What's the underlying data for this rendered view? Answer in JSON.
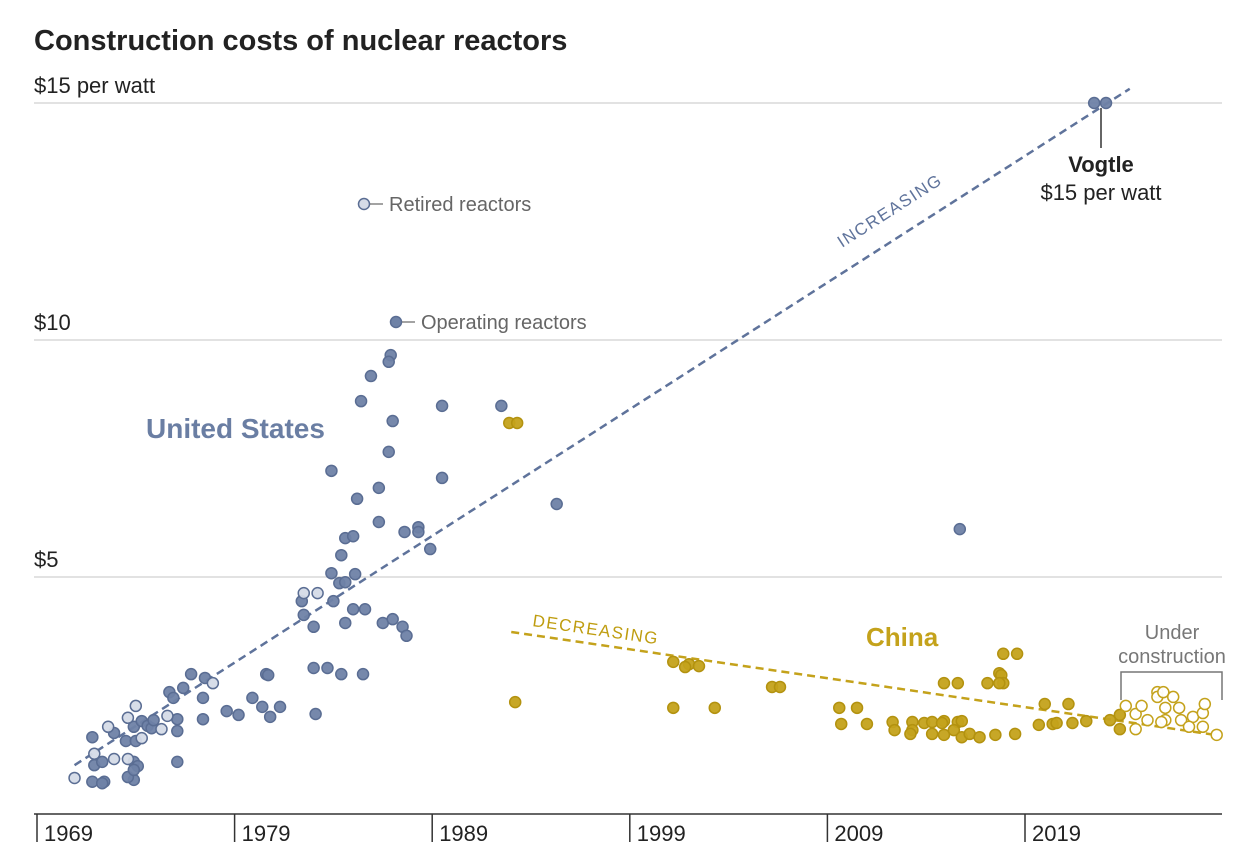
{
  "chart_data": {
    "type": "scatter",
    "title": "Construction costs of nuclear reactors",
    "xlabel": "",
    "ylabel": "",
    "xlim": [
      1969,
      2029
    ],
    "ylim": [
      0,
      15
    ],
    "grid": true,
    "y_ticks": [
      {
        "value": 15,
        "label": "$15 per watt"
      },
      {
        "value": 10,
        "label": "$10"
      },
      {
        "value": 5,
        "label": "$5"
      }
    ],
    "x_ticks": [
      {
        "value": 1969,
        "label": "1969"
      },
      {
        "value": 1979,
        "label": "1979"
      },
      {
        "value": 1989,
        "label": "1989"
      },
      {
        "value": 1999,
        "label": "1999"
      },
      {
        "value": 2009,
        "label": "2009"
      },
      {
        "value": 2019,
        "label": "2019"
      }
    ],
    "legend": {
      "retired": "Retired reactors",
      "operating": "Operating reactors"
    },
    "colors": {
      "us_fill": "#6f82a6",
      "us_stroke": "#5a6d93",
      "us_retired_fill": "#d5dbe7",
      "china": "#c4a21b",
      "china_stroke": "#b3920f",
      "grid": "#d8d8d8"
    },
    "series": [
      {
        "name": "United States",
        "status": "operating",
        "points": [
          [
            1971.8,
            0.68
          ],
          [
            1972.4,
            0.68
          ],
          [
            1972.3,
            0.65
          ],
          [
            1973.9,
            0.72
          ],
          [
            1973.6,
            0.78
          ],
          [
            1971.9,
            1.03
          ],
          [
            1972.3,
            1.1
          ],
          [
            1973.9,
            1.1
          ],
          [
            1974.1,
            1.01
          ],
          [
            1973.9,
            0.93
          ],
          [
            1971.8,
            1.62
          ],
          [
            1972.9,
            1.71
          ],
          [
            1973.5,
            1.54
          ],
          [
            1974.0,
            1.54
          ],
          [
            1973.9,
            1.84
          ],
          [
            1974.3,
            1.96
          ],
          [
            1974.6,
            1.86
          ],
          [
            1974.8,
            1.81
          ],
          [
            1974.9,
            1.98
          ],
          [
            1976.1,
            2.0
          ],
          [
            1976.1,
            1.75
          ],
          [
            1976.1,
            1.1
          ],
          [
            1975.7,
            2.57
          ],
          [
            1975.9,
            2.45
          ],
          [
            1976.4,
            2.66
          ],
          [
            1976.8,
            2.95
          ],
          [
            1977.5,
            2.87
          ],
          [
            1977.4,
            2.45
          ],
          [
            1977.4,
            2.0
          ],
          [
            1978.6,
            2.17
          ],
          [
            1979.2,
            2.09
          ],
          [
            1979.9,
            2.45
          ],
          [
            1980.4,
            2.26
          ],
          [
            1980.8,
            2.05
          ],
          [
            1981.3,
            2.26
          ],
          [
            1980.6,
            2.95
          ],
          [
            1980.7,
            2.93
          ],
          [
            1983.0,
            3.08
          ],
          [
            1983.7,
            3.08
          ],
          [
            1984.4,
            2.95
          ],
          [
            1985.5,
            2.95
          ],
          [
            1983.1,
            2.11
          ],
          [
            1982.4,
            4.49
          ],
          [
            1982.5,
            4.2
          ],
          [
            1983.0,
            3.95
          ],
          [
            1984.0,
            4.49
          ],
          [
            1984.3,
            4.87
          ],
          [
            1984.6,
            4.89
          ],
          [
            1985.0,
            4.32
          ],
          [
            1985.6,
            4.32
          ],
          [
            1984.6,
            4.03
          ],
          [
            1986.5,
            4.03
          ],
          [
            1987.0,
            4.11
          ],
          [
            1987.5,
            3.95
          ],
          [
            1987.7,
            3.76
          ],
          [
            1986.9,
            9.68
          ],
          [
            1986.8,
            9.54
          ],
          [
            1985.9,
            9.24
          ],
          [
            1985.4,
            8.71
          ],
          [
            1987.0,
            8.29
          ],
          [
            1986.8,
            7.64
          ],
          [
            1983.9,
            7.24
          ],
          [
            1989.5,
            8.61
          ],
          [
            1989.5,
            7.09
          ],
          [
            1986.3,
            6.88
          ],
          [
            1985.2,
            6.65
          ],
          [
            1986.3,
            6.16
          ],
          [
            1984.6,
            5.82
          ],
          [
            1985.0,
            5.86
          ],
          [
            1984.4,
            5.46
          ],
          [
            1987.6,
            5.95
          ],
          [
            1988.3,
            6.05
          ],
          [
            1988.3,
            5.95
          ],
          [
            1988.9,
            5.59
          ],
          [
            1985.1,
            5.06
          ],
          [
            1983.9,
            5.08
          ],
          [
            1992.5,
            8.61
          ],
          [
            1995.3,
            6.54
          ],
          [
            2015.7,
            6.01
          ],
          [
            2022.5,
            15.0
          ],
          [
            2023.1,
            15.0
          ]
        ]
      },
      {
        "name": "United States",
        "status": "retired",
        "points": [
          [
            1970.9,
            0.76
          ],
          [
            1972.9,
            1.16
          ],
          [
            1973.6,
            1.16
          ],
          [
            1971.9,
            1.27
          ],
          [
            1972.6,
            1.84
          ],
          [
            1974.3,
            1.6
          ],
          [
            1973.6,
            2.03
          ],
          [
            1974.0,
            2.28
          ],
          [
            1975.3,
            1.79
          ],
          [
            1975.6,
            2.07
          ],
          [
            1977.9,
            2.76
          ],
          [
            1982.5,
            4.66
          ],
          [
            1983.2,
            4.66
          ]
        ]
      },
      {
        "name": "China",
        "status": "operating",
        "points": [
          [
            1992.9,
            8.25
          ],
          [
            1993.3,
            8.25
          ],
          [
            1993.2,
            2.36
          ],
          [
            2001.2,
            3.21
          ],
          [
            2002.0,
            3.16
          ],
          [
            2001.8,
            3.1
          ],
          [
            2002.5,
            3.12
          ],
          [
            2001.2,
            2.24
          ],
          [
            2003.3,
            2.24
          ],
          [
            2006.2,
            2.68
          ],
          [
            2006.6,
            2.68
          ],
          [
            2009.6,
            2.24
          ],
          [
            2010.5,
            2.24
          ],
          [
            2009.7,
            1.9
          ],
          [
            2011.0,
            1.9
          ],
          [
            2012.3,
            1.94
          ],
          [
            2012.4,
            1.77
          ],
          [
            2013.3,
            1.94
          ],
          [
            2013.3,
            1.77
          ],
          [
            2013.2,
            1.69
          ],
          [
            2013.9,
            1.92
          ],
          [
            2014.3,
            1.94
          ],
          [
            2014.9,
            1.96
          ],
          [
            2014.8,
            1.92
          ],
          [
            2015.6,
            1.94
          ],
          [
            2015.8,
            1.96
          ],
          [
            2014.3,
            1.69
          ],
          [
            2014.9,
            1.67
          ],
          [
            2015.4,
            1.77
          ],
          [
            2015.8,
            1.62
          ],
          [
            2016.2,
            1.69
          ],
          [
            2016.7,
            1.62
          ],
          [
            2017.5,
            1.67
          ],
          [
            2018.5,
            1.69
          ],
          [
            2017.9,
            3.38
          ],
          [
            2018.6,
            3.38
          ],
          [
            2017.7,
            2.97
          ],
          [
            2017.8,
            2.93
          ],
          [
            2017.9,
            2.76
          ],
          [
            2017.7,
            2.76
          ],
          [
            2014.9,
            2.76
          ],
          [
            2015.6,
            2.76
          ],
          [
            2017.1,
            2.76
          ],
          [
            2020.0,
            2.32
          ],
          [
            2021.2,
            2.32
          ],
          [
            2019.7,
            1.88
          ],
          [
            2020.4,
            1.9
          ],
          [
            2020.6,
            1.92
          ],
          [
            2021.4,
            1.92
          ],
          [
            2022.1,
            1.96
          ],
          [
            2023.3,
            1.98
          ],
          [
            2023.8,
            2.09
          ],
          [
            2023.8,
            1.79
          ]
        ]
      },
      {
        "name": "China",
        "status": "under construction",
        "points": [
          [
            2024.1,
            2.28
          ],
          [
            2024.6,
            2.11
          ],
          [
            2024.9,
            2.28
          ],
          [
            2025.2,
            1.98
          ],
          [
            2025.7,
            2.57
          ],
          [
            2025.7,
            2.47
          ],
          [
            2026.0,
            2.57
          ],
          [
            2026.5,
            2.47
          ],
          [
            2026.1,
            2.24
          ],
          [
            2026.8,
            2.24
          ],
          [
            2026.1,
            1.98
          ],
          [
            2026.9,
            1.98
          ],
          [
            2025.9,
            1.94
          ],
          [
            2027.5,
            2.05
          ],
          [
            2028.0,
            2.13
          ],
          [
            2028.1,
            2.32
          ],
          [
            2027.3,
            1.84
          ],
          [
            2028.0,
            1.84
          ],
          [
            2024.6,
            1.79
          ],
          [
            2028.7,
            1.67
          ]
        ]
      }
    ],
    "trend_lines": [
      {
        "name": "United States",
        "label": "INCREASING",
        "from": [
          1970.9,
          1.03
        ],
        "to": [
          2024.3,
          15.3
        ]
      },
      {
        "name": "China",
        "label": "DECREASING",
        "from": [
          1993.0,
          3.84
        ],
        "to": [
          2028.6,
          1.67
        ]
      }
    ],
    "annotations": {
      "us_label": "United States",
      "china_label": "China",
      "vogtle_name": "Vogtle",
      "vogtle_value": "$15 per watt",
      "under_construction_1": "Under",
      "under_construction_2": "construction"
    }
  }
}
